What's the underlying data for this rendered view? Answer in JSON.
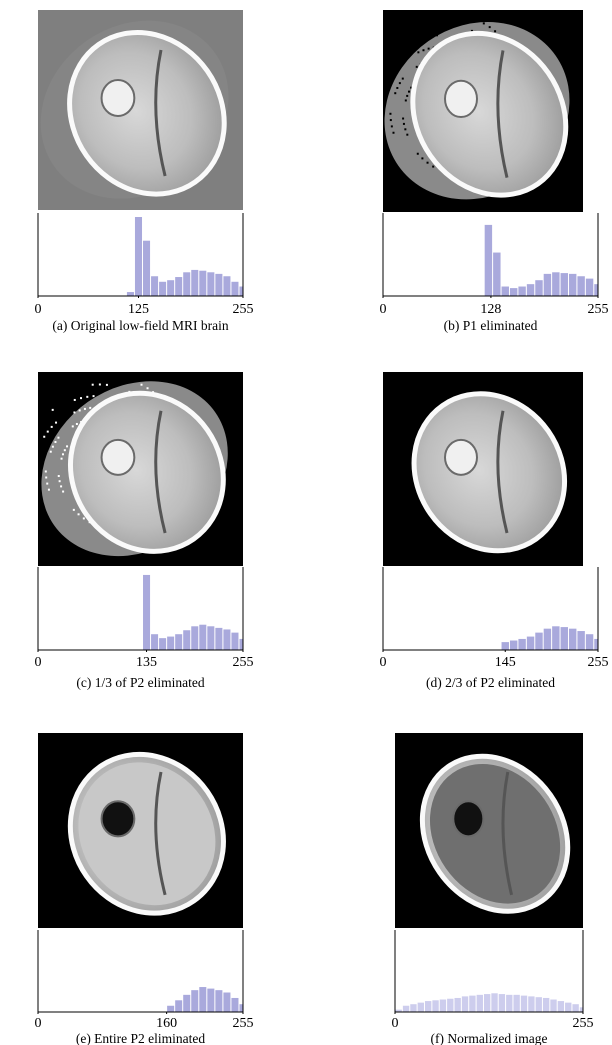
{
  "chart_data": [
    {
      "type": "histogram",
      "title": "(a) Original low-field MRI brain",
      "color": "#9a9ad6",
      "bins": [
        0,
        10,
        20,
        30,
        40,
        50,
        60,
        70,
        80,
        90,
        100,
        110,
        120,
        130,
        140,
        150,
        160,
        170,
        180,
        190,
        200,
        210,
        220,
        230,
        240,
        250,
        255
      ],
      "values": [
        0,
        0,
        0,
        0,
        0,
        0,
        0,
        0,
        0,
        0,
        0,
        5,
        100,
        70,
        25,
        18,
        20,
        24,
        30,
        33,
        32,
        30,
        28,
        25,
        18,
        12
      ],
      "xlim": [
        0,
        255
      ],
      "ylim": [
        0,
        100
      ],
      "xticks": [
        0,
        125,
        255
      ]
    },
    {
      "type": "histogram",
      "title": "(b) P1 eliminated",
      "color": "#9a9ad6",
      "bins": [
        0,
        10,
        20,
        30,
        40,
        50,
        60,
        70,
        80,
        90,
        100,
        110,
        120,
        130,
        140,
        150,
        160,
        170,
        180,
        190,
        200,
        210,
        220,
        230,
        240,
        250,
        255
      ],
      "values": [
        0,
        0,
        0,
        0,
        0,
        0,
        0,
        0,
        0,
        0,
        0,
        0,
        90,
        55,
        12,
        10,
        12,
        15,
        20,
        28,
        30,
        29,
        28,
        25,
        22,
        15
      ],
      "xlim": [
        0,
        255
      ],
      "ylim": [
        0,
        100
      ],
      "xticks": [
        0,
        128,
        255
      ]
    },
    {
      "type": "histogram",
      "title": "(c) 1/3 of P2 eliminated",
      "color": "#9a9ad6",
      "bins": [
        0,
        10,
        20,
        30,
        40,
        50,
        60,
        70,
        80,
        90,
        100,
        110,
        120,
        130,
        140,
        150,
        160,
        170,
        180,
        190,
        200,
        210,
        220,
        230,
        240,
        250,
        255
      ],
      "values": [
        0,
        0,
        0,
        0,
        0,
        0,
        0,
        0,
        0,
        0,
        0,
        0,
        0,
        95,
        20,
        15,
        17,
        20,
        25,
        30,
        32,
        30,
        28,
        26,
        22,
        14
      ],
      "xlim": [
        0,
        255
      ],
      "ylim": [
        0,
        100
      ],
      "xticks": [
        0,
        135,
        255
      ]
    },
    {
      "type": "histogram",
      "title": "(d) 2/3 of P2 eliminated",
      "color": "#9a9ad6",
      "bins": [
        0,
        10,
        20,
        30,
        40,
        50,
        60,
        70,
        80,
        90,
        100,
        110,
        120,
        130,
        140,
        150,
        160,
        170,
        180,
        190,
        200,
        210,
        220,
        230,
        240,
        250,
        255
      ],
      "values": [
        0,
        0,
        0,
        0,
        0,
        0,
        0,
        0,
        0,
        0,
        0,
        0,
        0,
        0,
        10,
        12,
        14,
        17,
        22,
        27,
        30,
        29,
        27,
        24,
        20,
        14
      ],
      "xlim": [
        0,
        255
      ],
      "ylim": [
        0,
        100
      ],
      "xticks": [
        0,
        145,
        255
      ]
    },
    {
      "type": "histogram",
      "title": "(e) Entire P2 eliminated",
      "color": "#9a9ad6",
      "bins": [
        0,
        10,
        20,
        30,
        40,
        50,
        60,
        70,
        80,
        90,
        100,
        110,
        120,
        130,
        140,
        150,
        160,
        170,
        180,
        190,
        200,
        210,
        220,
        230,
        240,
        250,
        255
      ],
      "values": [
        0,
        0,
        0,
        0,
        0,
        0,
        0,
        0,
        0,
        0,
        0,
        0,
        0,
        0,
        0,
        0,
        8,
        15,
        22,
        28,
        32,
        30,
        28,
        25,
        18,
        10
      ],
      "xlim": [
        0,
        255
      ],
      "ylim": [
        0,
        100
      ],
      "xticks": [
        0,
        160,
        255
      ]
    },
    {
      "type": "histogram",
      "title": "(f) Normalized image",
      "color": "#c4c4ea",
      "bins": [
        0,
        10,
        20,
        30,
        40,
        50,
        60,
        70,
        80,
        90,
        100,
        110,
        120,
        130,
        140,
        150,
        160,
        170,
        180,
        190,
        200,
        210,
        220,
        230,
        240,
        250,
        255
      ],
      "values": [
        3,
        8,
        10,
        12,
        14,
        15,
        16,
        17,
        18,
        20,
        21,
        22,
        23,
        24,
        23,
        22,
        22,
        21,
        20,
        19,
        18,
        16,
        14,
        12,
        10,
        6
      ],
      "xlim": [
        0,
        255
      ],
      "ylim": [
        0,
        100
      ],
      "xticks": [
        0,
        255
      ]
    }
  ]
}
